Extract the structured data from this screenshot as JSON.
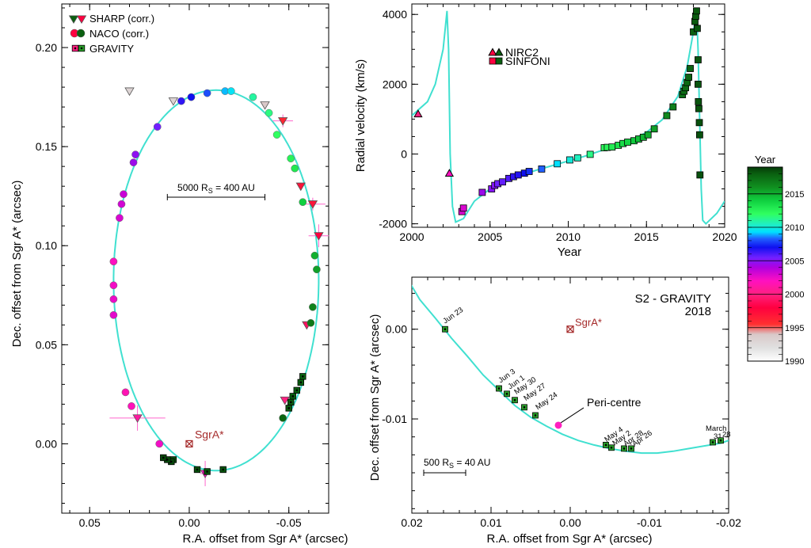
{
  "chart_data": [
    {
      "type": "scatter",
      "panel": "orbit",
      "xlabel": "R.A. offset from Sgr A* (arcsec)",
      "ylabel": "Dec. offset from Sgr A* (arcsec)",
      "xlim": [
        0.064,
        -0.07
      ],
      "ylim": [
        -0.035,
        0.222
      ],
      "xticks": [
        "0.05",
        "0.00",
        "-0.05"
      ],
      "xtick_values": [
        0.05,
        0.0,
        -0.05
      ],
      "yticks": [
        "0.00",
        "0.05",
        "0.10",
        "0.15",
        "0.20"
      ],
      "ytick_values": [
        0.0,
        0.05,
        0.1,
        0.15,
        0.2
      ],
      "legend": [
        "SHARP (corr.)",
        "NACO (corr.)",
        "GRAVITY"
      ],
      "legend_position": "top-left",
      "annotations": {
        "sgra": "SgrA*",
        "scale": "5000 R",
        "scale_sub": "S",
        "scale_rest": " = 400 AU"
      },
      "orbit": {
        "ra_center": -0.0135,
        "dec_center": 0.0825,
        "ra_radius": 0.0515,
        "dec_radius": 0.096
      },
      "series": [
        {
          "name": "SHARP (corr.)",
          "marker": "triangle",
          "points": [
            [
              0.008,
              0.173,
              1993
            ],
            [
              0.03,
              0.178,
              1993
            ],
            [
              -0.038,
              0.171,
              1994
            ],
            [
              -0.047,
              0.163,
              1996
            ],
            [
              -0.056,
              0.13,
              1997
            ],
            [
              -0.062,
              0.121,
              1997
            ],
            [
              -0.065,
              0.105,
              1998
            ],
            [
              -0.059,
              0.06,
              1999
            ],
            [
              -0.048,
              0.022,
              2000
            ],
            [
              0.026,
              0.013,
              2001
            ],
            [
              -0.008,
              -0.015,
              2002
            ]
          ]
        },
        {
          "name": "NACO (corr.)",
          "marker": "circle",
          "points": [
            [
              0.038,
              0.092,
              2002
            ],
            [
              0.038,
              0.08,
              2002.3
            ],
            [
              0.038,
              0.073,
              2002.5
            ],
            [
              0.038,
              0.065,
              2002.7
            ],
            [
              0.035,
              0.114,
              2003
            ],
            [
              0.034,
              0.121,
              2003.2
            ],
            [
              0.033,
              0.126,
              2003.4
            ],
            [
              0.028,
              0.142,
              2004.5
            ],
            [
              0.027,
              0.146,
              2004.8
            ],
            [
              0.016,
              0.16,
              2005.5
            ],
            [
              0.004,
              0.173,
              2006.5
            ],
            [
              -0.001,
              0.175,
              2007
            ],
            [
              0.032,
              0.026,
              2001.6
            ],
            [
              0.029,
              0.019,
              2001.8
            ],
            [
              0.015,
              0.0,
              2002.3
            ],
            [
              -0.009,
              0.177,
              2008
            ],
            [
              -0.018,
              0.178,
              2009
            ],
            [
              -0.021,
              0.178,
              2009.5
            ],
            [
              -0.032,
              0.175,
              2011
            ],
            [
              -0.04,
              0.167,
              2011.5
            ],
            [
              -0.044,
              0.156,
              2012
            ],
            [
              -0.051,
              0.144,
              2012.5
            ],
            [
              -0.053,
              0.139,
              2013
            ],
            [
              -0.057,
              0.122,
              2014
            ],
            [
              -0.063,
              0.095,
              2015
            ],
            [
              -0.064,
              0.088,
              2015.5
            ],
            [
              -0.062,
              0.069,
              2016.5
            ],
            [
              -0.061,
              0.061,
              2017
            ],
            [
              -0.047,
              0.013,
              2017.7
            ]
          ]
        },
        {
          "name": "GRAVITY",
          "marker": "square",
          "points": [
            [
              -0.057,
              0.034,
              2017.8
            ],
            [
              -0.056,
              0.031,
              2017.9
            ],
            [
              -0.054,
              0.027,
              2018.0
            ],
            [
              -0.052,
              0.024,
              2018.05
            ],
            [
              -0.051,
              0.021,
              2018.1
            ],
            [
              -0.05,
              0.018,
              2018.15
            ],
            [
              -0.017,
              -0.013,
              2018.3
            ],
            [
              -0.009,
              -0.014,
              2018.35
            ],
            [
              -0.004,
              -0.013,
              2018.4
            ],
            [
              0.008,
              -0.008,
              2018.45
            ],
            [
              0.009,
              -0.009,
              2018.5
            ],
            [
              0.011,
              -0.008,
              2018.55
            ],
            [
              0.013,
              -0.007,
              2018.6
            ]
          ]
        }
      ]
    },
    {
      "type": "scatter",
      "panel": "radial-velocity",
      "xlabel": "Year",
      "ylabel": "Radial velocity (km/s)",
      "xlim": [
        2000,
        2020
      ],
      "ylim": [
        -2100,
        4300
      ],
      "xticks": [
        "2000",
        "2005",
        "2010",
        "2015",
        "2020"
      ],
      "xtick_values": [
        2000,
        2005,
        2010,
        2015,
        2020
      ],
      "yticks": [
        "-2000",
        "0",
        "2000",
        "4000"
      ],
      "ytick_values": [
        -2000,
        0,
        2000,
        4000
      ],
      "legend": [
        "NIRC2",
        "SINFONI"
      ],
      "legend_position": "top-left",
      "model_curve": [
        [
          2000,
          1100
        ],
        [
          2001,
          1500
        ],
        [
          2001.5,
          2000
        ],
        [
          2002.0,
          3000
        ],
        [
          2002.25,
          4100
        ],
        [
          2002.35,
          3000
        ],
        [
          2002.45,
          0
        ],
        [
          2002.6,
          -1500
        ],
        [
          2002.8,
          -1950
        ],
        [
          2003.3,
          -1850
        ],
        [
          2004,
          -1350
        ],
        [
          2005,
          -1000
        ],
        [
          2006,
          -800
        ],
        [
          2007,
          -600
        ],
        [
          2008,
          -460
        ],
        [
          2009,
          -330
        ],
        [
          2010,
          -200
        ],
        [
          2011,
          -70
        ],
        [
          2012,
          80
        ],
        [
          2013,
          220
        ],
        [
          2014,
          390
        ],
        [
          2015,
          620
        ],
        [
          2016,
          980
        ],
        [
          2017,
          1650
        ],
        [
          2017.6,
          2500
        ],
        [
          2018.0,
          3500
        ],
        [
          2018.2,
          4100
        ],
        [
          2018.3,
          3000
        ],
        [
          2018.4,
          1000
        ],
        [
          2018.5,
          -1000
        ],
        [
          2018.6,
          -1900
        ],
        [
          2018.8,
          -2000
        ],
        [
          2019.5,
          -1700
        ],
        [
          2020,
          -1350
        ]
      ],
      "series": [
        {
          "name": "NIRC2",
          "marker": "triangle",
          "points": [
            [
              2000.4,
              1150,
              2000
            ],
            [
              2002.4,
              -550,
              2002
            ]
          ]
        },
        {
          "name": "SINFONI",
          "marker": "square",
          "points": [
            [
              2003.2,
              -1650,
              2003
            ],
            [
              2003.3,
              -1550,
              2003
            ],
            [
              2004.5,
              -1100,
              2004.5
            ],
            [
              2005.1,
              -1000,
              2005
            ],
            [
              2005.3,
              -900,
              2005
            ],
            [
              2005.5,
              -850,
              2005.5
            ],
            [
              2005.8,
              -800,
              2005.7
            ],
            [
              2006.2,
              -700,
              2006
            ],
            [
              2006.5,
              -650,
              2006.5
            ],
            [
              2006.8,
              -600,
              2006.7
            ],
            [
              2007.2,
              -550,
              2007
            ],
            [
              2007.5,
              -500,
              2007.5
            ],
            [
              2008.3,
              -430,
              2008.3
            ],
            [
              2009.3,
              -280,
              2009.3
            ],
            [
              2010.1,
              -170,
              2010
            ],
            [
              2010.6,
              -110,
              2010.5
            ],
            [
              2011.4,
              -10,
              2011.4
            ],
            [
              2012.3,
              180,
              2012.3
            ],
            [
              2012.5,
              190,
              2012.5
            ],
            [
              2012.8,
              200,
              2012.8
            ],
            [
              2013.2,
              250,
              2013.2
            ],
            [
              2013.5,
              300,
              2013.5
            ],
            [
              2013.8,
              340,
              2013.8
            ],
            [
              2014.2,
              380,
              2014.2
            ],
            [
              2014.5,
              430,
              2014.5
            ],
            [
              2014.8,
              480,
              2014.8
            ],
            [
              2015.1,
              550,
              2015.1
            ],
            [
              2015.5,
              720,
              2015.5
            ],
            [
              2016.3,
              1100,
              2016.3
            ],
            [
              2016.7,
              1350,
              2016.7
            ],
            [
              2017.3,
              1700,
              2017.3
            ],
            [
              2017.4,
              1800,
              2017.4
            ],
            [
              2017.5,
              1900,
              2017.5
            ],
            [
              2017.6,
              2050,
              2017.6
            ],
            [
              2017.7,
              2200,
              2017.7
            ],
            [
              2017.8,
              2450,
              2017.8
            ],
            [
              2018.0,
              3500,
              2018.0
            ],
            [
              2018.1,
              3800,
              2018.1
            ],
            [
              2018.15,
              3950,
              2018.1
            ],
            [
              2018.2,
              4100,
              2018.2
            ],
            [
              2018.25,
              3600,
              2018.2
            ],
            [
              2018.3,
              2700,
              2018.3
            ],
            [
              2018.3,
              2000,
              2018.3
            ],
            [
              2018.32,
              1500,
              2018.3
            ],
            [
              2018.35,
              1300,
              2018.3
            ],
            [
              2018.38,
              900,
              2018.4
            ],
            [
              2018.4,
              550,
              2018.4
            ],
            [
              2018.42,
              -600,
              2018.4
            ]
          ]
        }
      ]
    },
    {
      "type": "scatter",
      "panel": "pericentre",
      "title": "S2 - GRAVITY",
      "subtitle": "2018",
      "xlabel": "R.A. offset from Sgr A* (arcsec)",
      "ylabel": "Dec. offset from Sgr A* (arcsec)",
      "xlim": [
        0.02,
        -0.02
      ],
      "ylim": [
        -0.0205,
        0.0058
      ],
      "xticks": [
        "0.02",
        "0.01",
        "0.00",
        "-0.01",
        "-0.02"
      ],
      "xtick_values": [
        0.02,
        0.01,
        0.0,
        -0.01,
        -0.02
      ],
      "yticks": [
        "0.00",
        "-0.01"
      ],
      "ytick_values": [
        0.0,
        -0.01
      ],
      "annotations": {
        "sgra": "SgrA*",
        "peri": "Peri-centre",
        "scale": "500 R",
        "scale_sub": "S",
        "scale_rest": " = 40 AU"
      },
      "curve": [
        [
          0.0204,
          0.0054
        ],
        [
          0.019,
          0.0033
        ],
        [
          0.017,
          0.0012
        ],
        [
          0.015,
          -0.001
        ],
        [
          0.013,
          -0.003
        ],
        [
          0.011,
          -0.0051
        ],
        [
          0.009,
          -0.0068
        ],
        [
          0.007,
          -0.0085
        ],
        [
          0.005,
          -0.0098
        ],
        [
          0.003,
          -0.0108
        ],
        [
          0.001,
          -0.0117
        ],
        [
          -0.001,
          -0.0124
        ],
        [
          -0.003,
          -0.0129
        ],
        [
          -0.005,
          -0.0133
        ],
        [
          -0.007,
          -0.0136
        ],
        [
          -0.009,
          -0.0138
        ],
        [
          -0.011,
          -0.0138
        ],
        [
          -0.013,
          -0.0136
        ],
        [
          -0.015,
          -0.0133
        ],
        [
          -0.017,
          -0.013
        ],
        [
          -0.019,
          -0.0127
        ],
        [
          -0.02,
          -0.0124
        ]
      ],
      "pericentre": [
        0.0015,
        -0.0107
      ],
      "points": [
        {
          "label": "Jun 23",
          "x": 0.0158,
          "y": 0.0,
          "lx": 0.0158,
          "ly": 0.0006,
          "rot": -35
        },
        {
          "label": "Jun 3",
          "x": 0.009,
          "y": -0.0066,
          "lx": 0.0088,
          "ly": -0.006,
          "rot": -35
        },
        {
          "label": "Jun 1",
          "x": 0.008,
          "y": -0.0072,
          "lx": 0.0076,
          "ly": -0.0067,
          "rot": -35
        },
        {
          "label": "May 30",
          "x": 0.007,
          "y": -0.0079,
          "lx": 0.0068,
          "ly": -0.0073,
          "rot": -35
        },
        {
          "label": "May 27",
          "x": 0.0058,
          "y": -0.0087,
          "lx": 0.0056,
          "ly": -0.008,
          "rot": -35
        },
        {
          "label": "May 24",
          "x": 0.0044,
          "y": -0.0096,
          "lx": 0.0041,
          "ly": -0.009,
          "rot": -35
        },
        {
          "label": "May 4",
          "x": -0.0045,
          "y": -0.0129,
          "lx": -0.0046,
          "ly": -0.0126,
          "rot": -35
        },
        {
          "label": "May 2",
          "x": -0.0052,
          "y": -0.0132,
          "lx": -0.0056,
          "ly": -0.013,
          "rot": -35
        },
        {
          "label": "Apr 28",
          "x": -0.0068,
          "y": -0.0133,
          "lx": -0.007,
          "ly": -0.0131,
          "rot": -35
        },
        {
          "label": "Apr 26",
          "x": -0.0077,
          "y": -0.0133,
          "lx": -0.0081,
          "ly": -0.0131,
          "rot": -35
        },
        {
          "label": "31",
          "x": -0.018,
          "y": -0.0126,
          "lx": -0.0181,
          "ly": -0.0122,
          "rot": 0
        },
        {
          "label": "28",
          "x": -0.019,
          "y": -0.0124,
          "lx": -0.0192,
          "ly": -0.012,
          "rot": 0
        },
        {
          "label": "March",
          "x": null,
          "y": null,
          "lx": -0.0171,
          "ly": -0.0113,
          "rot": 0
        }
      ]
    },
    {
      "type": "colorbar",
      "title": "Year",
      "range": [
        1990,
        2019
      ],
      "ticks": [
        "1990",
        "1995",
        "2000",
        "2005",
        "2010",
        "2015"
      ],
      "tick_values": [
        1990,
        1995,
        2000,
        2005,
        2010,
        2015
      ],
      "stops": [
        {
          "year": 1990,
          "color": "#ffffff"
        },
        {
          "year": 1992,
          "color": "#e0e0e0"
        },
        {
          "year": 1994,
          "color": "#d9c8c8"
        },
        {
          "year": 1995.5,
          "color": "#ff3030"
        },
        {
          "year": 1998,
          "color": "#ff0040"
        },
        {
          "year": 2000,
          "color": "#ff2080"
        },
        {
          "year": 2002,
          "color": "#ff10c0"
        },
        {
          "year": 2004,
          "color": "#b000e0"
        },
        {
          "year": 2005.5,
          "color": "#7020ff"
        },
        {
          "year": 2007,
          "color": "#1010f0"
        },
        {
          "year": 2008.3,
          "color": "#2060ff"
        },
        {
          "year": 2009.3,
          "color": "#00e0ff"
        },
        {
          "year": 2010.5,
          "color": "#20f0c0"
        },
        {
          "year": 2012,
          "color": "#30ff60"
        },
        {
          "year": 2014,
          "color": "#10d040"
        },
        {
          "year": 2016,
          "color": "#109020"
        },
        {
          "year": 2018,
          "color": "#0a6010"
        },
        {
          "year": 2019,
          "color": "#053a08"
        }
      ]
    }
  ],
  "colors": {
    "model_curve": "#40e0d0",
    "sgra": "#a52a2a",
    "pericentre": "#ff20c0",
    "error_bar": "#ff66cc",
    "gravity_fill": "#2aa02a"
  }
}
